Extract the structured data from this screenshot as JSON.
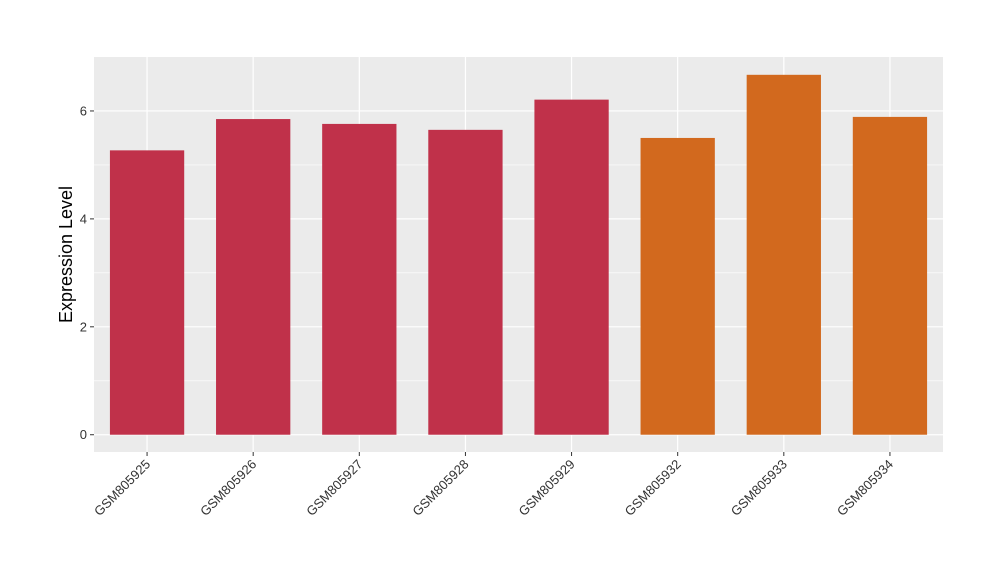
{
  "chart_data": {
    "type": "bar",
    "title": "",
    "xlabel": "",
    "ylabel": "Expression Level",
    "categories": [
      "GSM805925",
      "GSM805926",
      "GSM805927",
      "GSM805928",
      "GSM805929",
      "GSM805932",
      "GSM805933",
      "GSM805934"
    ],
    "values": [
      5.27,
      5.85,
      5.76,
      5.65,
      6.21,
      5.5,
      6.67,
      5.89
    ],
    "bar_colors": [
      "#c0314a",
      "#c0314a",
      "#c0314a",
      "#c0314a",
      "#c0314a",
      "#d2691e",
      "#d2691e",
      "#d2691e"
    ],
    "ylim": [
      -0.32,
      7.0
    ],
    "yticks": [
      0,
      2,
      4,
      6
    ],
    "ytick_labels": [
      "0",
      "2",
      "4",
      "6"
    ],
    "grid": true,
    "panel_background": "#ebebeb",
    "gridline_color": "#ffffff"
  }
}
